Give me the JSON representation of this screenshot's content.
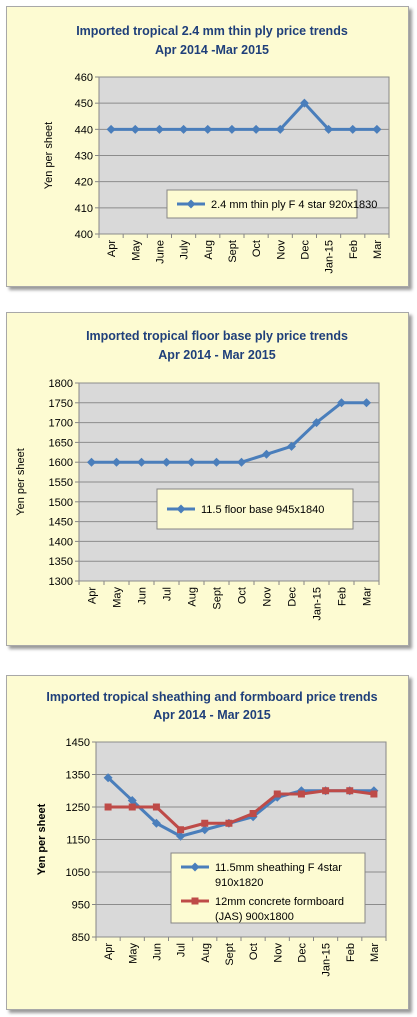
{
  "chart_data": [
    {
      "type": "line",
      "title": "Imported tropical 2.4 mm thin ply price trends",
      "subtitle": "Apr 2014 -Mar 2015",
      "xlabel": "",
      "ylabel": "Yen per sheet",
      "ylim": [
        400,
        460
      ],
      "yticks": [
        400,
        410,
        420,
        430,
        440,
        450,
        460
      ],
      "categories": [
        "Apr",
        "May",
        "June",
        "July",
        "Aug",
        "Sept",
        "Oct",
        "Nov",
        "Dec",
        "Jan-15",
        "Feb",
        "Mar"
      ],
      "grid": true,
      "legend": "center",
      "series": [
        {
          "name": "2.4 mm thin ply F 4 star 920x1830",
          "color": "#4a7ebb",
          "marker": "diamond",
          "values": [
            440,
            440,
            440,
            440,
            440,
            440,
            440,
            440,
            450,
            440,
            440,
            440
          ]
        }
      ]
    },
    {
      "type": "line",
      "title": "Imported tropical floor base ply price trends",
      "subtitle": "Apr 2014 - Mar 2015",
      "xlabel": "",
      "ylabel": "Yen per sheet",
      "ylim": [
        1300,
        1800
      ],
      "yticks": [
        1300,
        1350,
        1400,
        1450,
        1500,
        1550,
        1600,
        1650,
        1700,
        1750,
        1800
      ],
      "categories": [
        "Apr",
        "May",
        "Jun",
        "Jul",
        "Aug",
        "Sept",
        "Oct",
        "Nov",
        "Dec",
        "Jan-15",
        "Feb",
        "Mar"
      ],
      "grid": true,
      "legend": "center",
      "series": [
        {
          "name": "11.5 floor base 945x1840",
          "color": "#4a7ebb",
          "marker": "diamond",
          "values": [
            1600,
            1600,
            1600,
            1600,
            1600,
            1600,
            1600,
            1620,
            1640,
            1700,
            1750,
            1750
          ]
        }
      ]
    },
    {
      "type": "line",
      "title": "Imported tropical sheathing and formboard price trends",
      "subtitle": "Apr 2014 - Mar 2015",
      "xlabel": "",
      "ylabel": "Yen per sheet",
      "ylim": [
        850,
        1450
      ],
      "yticks": [
        850,
        950,
        1050,
        1150,
        1250,
        1350,
        1450
      ],
      "categories": [
        "Apr",
        "May",
        "Jun",
        "Jul",
        "Aug",
        "Sept",
        "Oct",
        "Nov",
        "Dec",
        "Jan-15",
        "Feb",
        "Mar"
      ],
      "grid": true,
      "legend": "bottom-right",
      "series": [
        {
          "name": "11.5mm sheathing F 4star",
          "name2": "910x1820",
          "color": "#4a7ebb",
          "marker": "diamond",
          "values": [
            1340,
            1270,
            1200,
            1160,
            1180,
            1200,
            1220,
            1280,
            1300,
            1300,
            1300,
            1300
          ]
        },
        {
          "name": "12mm concrete formboard",
          "name2": "(JAS) 900x1800",
          "color": "#be4b48",
          "marker": "square",
          "values": [
            1250,
            1250,
            1250,
            1180,
            1200,
            1200,
            1230,
            1290,
            1290,
            1300,
            1300,
            1290
          ]
        }
      ]
    }
  ]
}
